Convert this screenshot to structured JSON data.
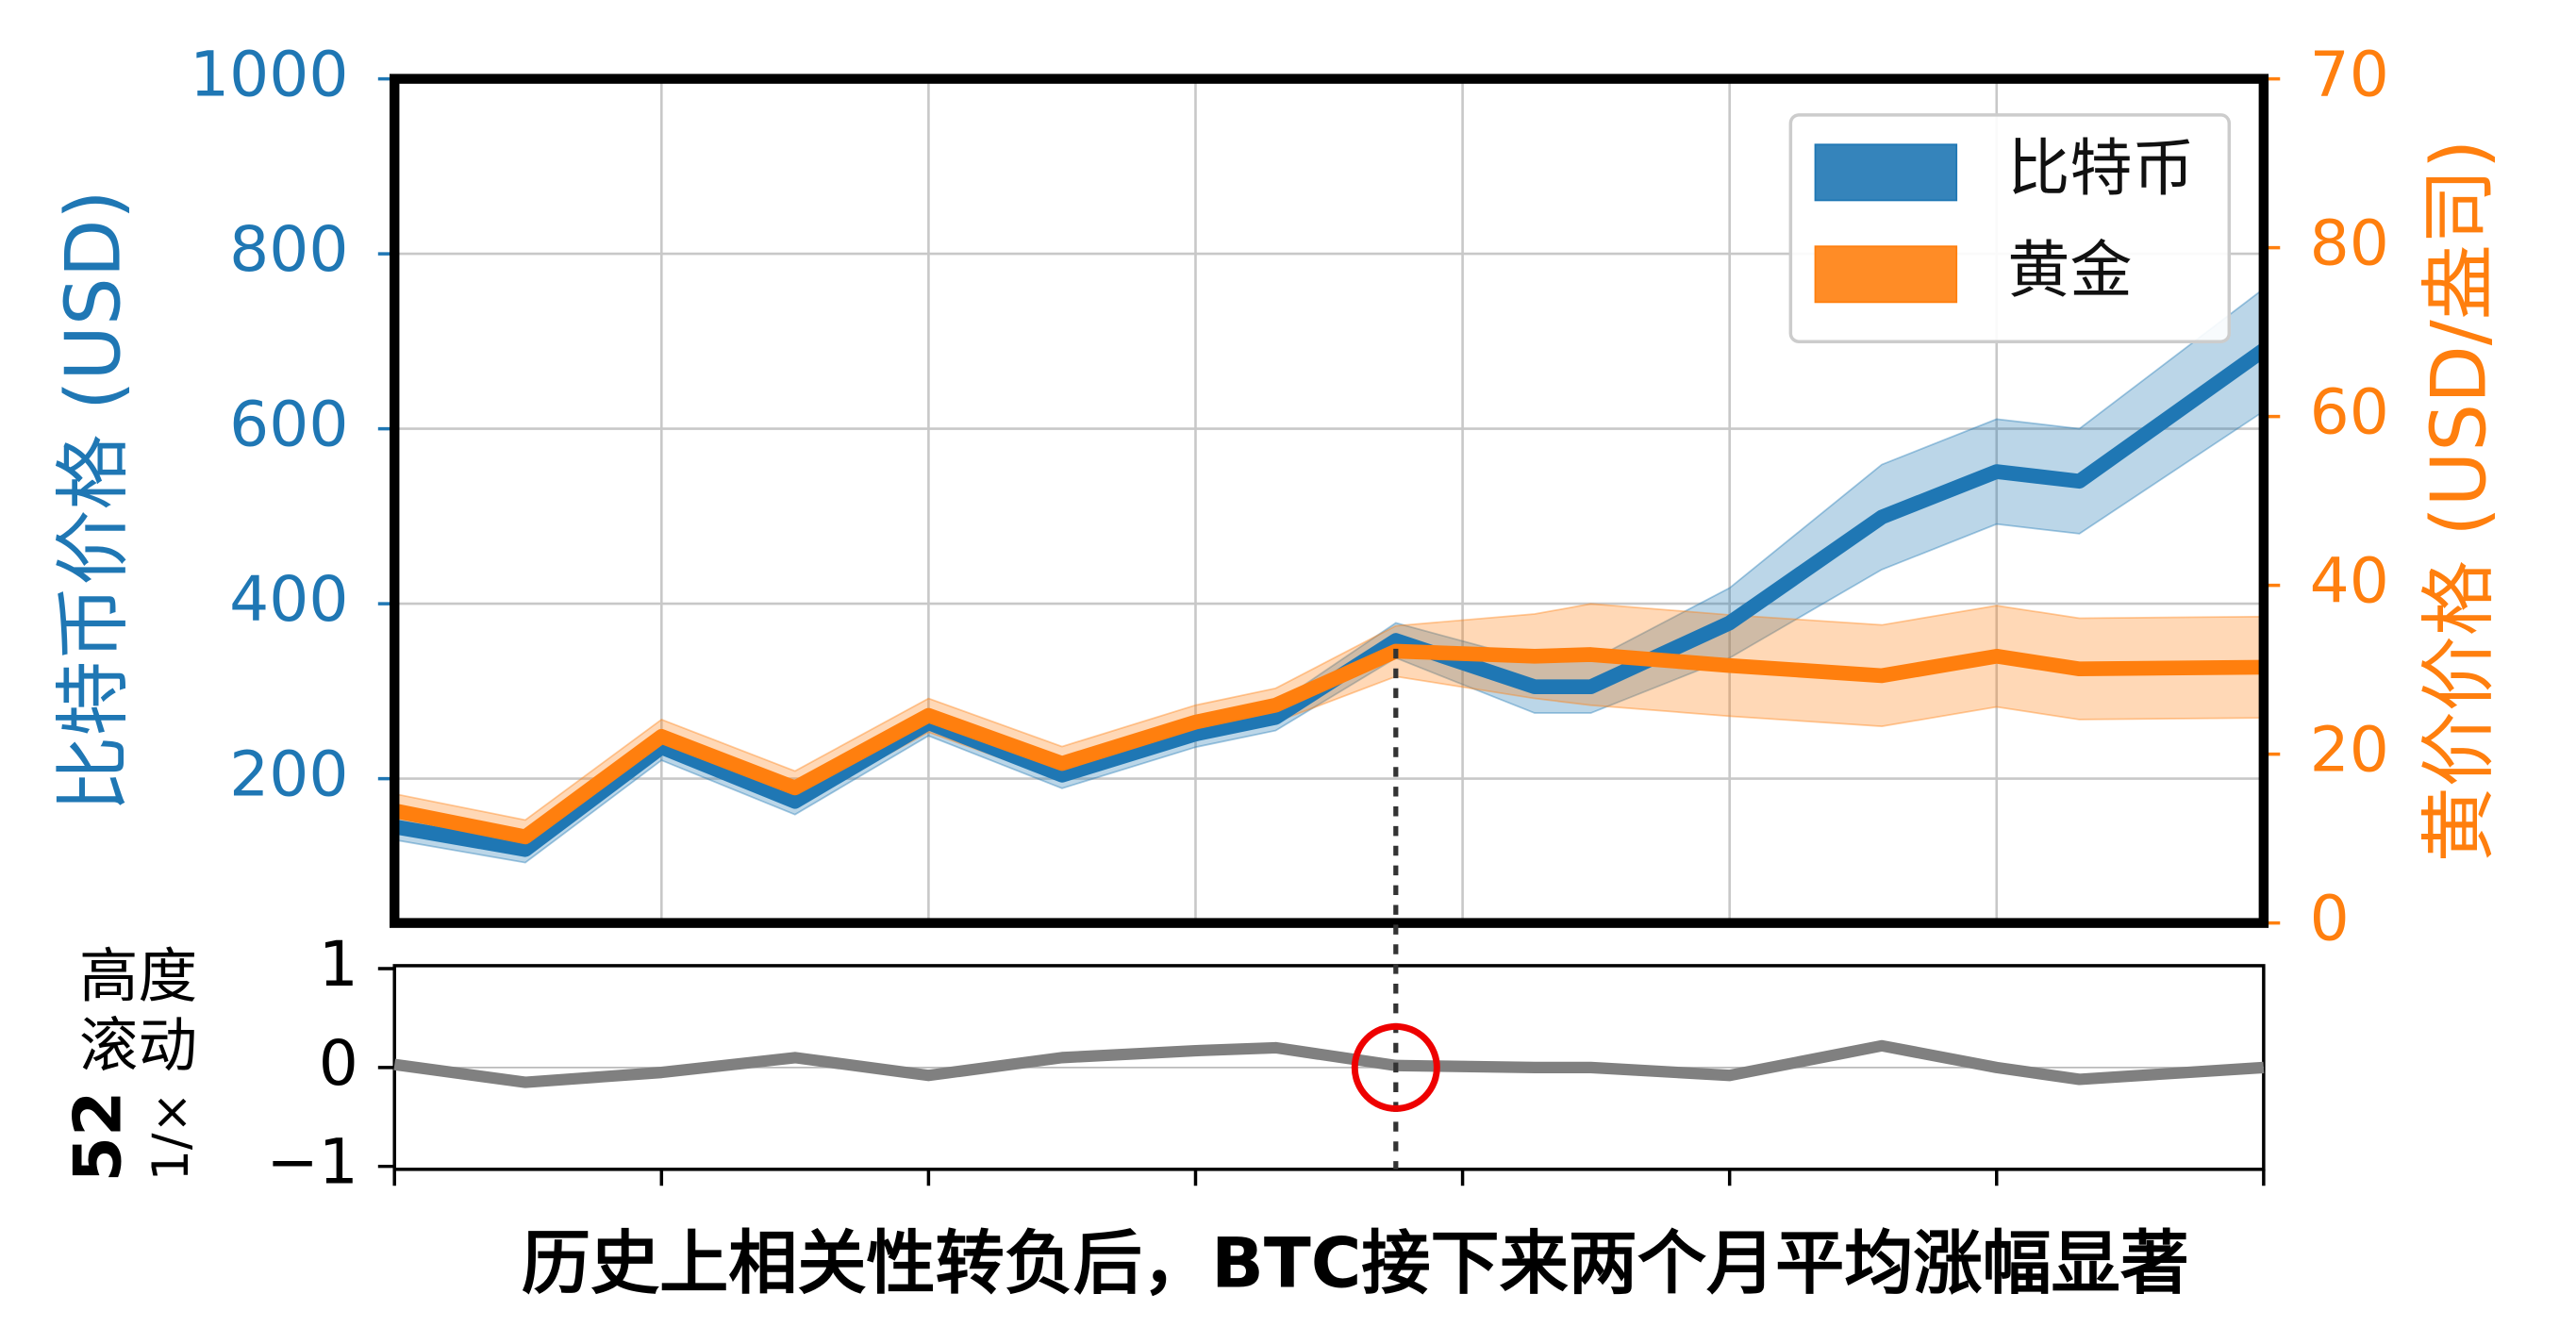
{
  "chart_data": [
    {
      "type": "line",
      "ylabel": "比特币价格 (USD)",
      "y2label": "黄价价格 (USD/盎司)",
      "x": [
        0,
        0.49,
        1,
        1.5,
        2,
        2.5,
        3,
        3.3,
        3.75,
        4.27,
        4.48,
        5,
        5.57,
        6,
        6.31,
        7
      ],
      "xlim": [
        0,
        7
      ],
      "xticks": [
        0,
        1,
        2,
        3,
        4,
        5,
        6,
        7
      ],
      "ylim": [
        35,
        1000
      ],
      "yticks": [
        200,
        400,
        600,
        800,
        1000
      ],
      "y2lim": [
        0,
        100
      ],
      "y2ticks": [
        0,
        20,
        40,
        60,
        80
      ],
      "y2_top_label": "70",
      "grid": true,
      "legend": "upper right",
      "series": [
        {
          "name": "比特币",
          "color": "#1f77b4",
          "values": [
            145,
            119,
            236,
            174,
            264,
            204,
            251,
            270,
            358,
            305,
            305,
            378,
            499,
            551,
            540,
            690
          ],
          "errors": [
            15,
            15,
            15,
            15,
            15,
            15,
            15,
            15,
            20,
            30,
            30,
            40,
            60,
            60,
            60,
            70
          ]
        },
        {
          "name": "黄金",
          "color": "#ff7f0e",
          "axis": "y2",
          "values": [
            13.3,
            10.2,
            22.1,
            16,
            24.6,
            18.9,
            23.8,
            25.8,
            32.2,
            31.6,
            31.8,
            30.5,
            29.3,
            31.6,
            30.1,
            30.3
          ],
          "errors": [
            2,
            2,
            2,
            2,
            2,
            2,
            2,
            2,
            3,
            5,
            6,
            6,
            6,
            6,
            6,
            6
          ]
        }
      ]
    },
    {
      "type": "line",
      "ylabel_lines": [
        "高度",
        "滚动"
      ],
      "ylabel_rotated": [
        "52",
        "1/×"
      ],
      "x": [
        0,
        0.49,
        1,
        1.5,
        2,
        2.5,
        3,
        3.3,
        3.75,
        4.27,
        4.48,
        5,
        5.57,
        6,
        6.31,
        7
      ],
      "xlim": [
        0,
        7
      ],
      "xticks": [
        0,
        1,
        2,
        3,
        4,
        5,
        6,
        7
      ],
      "ylim": [
        -1.03,
        1.03
      ],
      "yticks": [
        {
          "value": -1,
          "label": "−1"
        },
        0,
        1
      ],
      "highlight_x": 3.75,
      "caption": "历史上相关性转负后，BTC接下来两个月平均涨幅显著",
      "series": [
        {
          "color": "#808080",
          "values": [
            0.03,
            -0.15,
            -0.05,
            0.1,
            -0.08,
            0.1,
            0.17,
            0.2,
            0.02,
            0,
            0,
            -0.08,
            0.22,
            0,
            -0.12,
            0
          ]
        }
      ]
    }
  ]
}
